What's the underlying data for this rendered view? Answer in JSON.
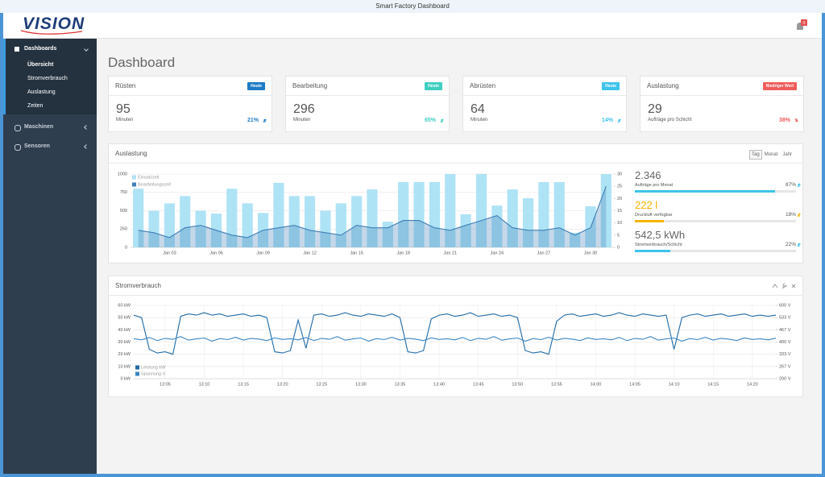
{
  "window": {
    "title": "Smart Factory Dashboard"
  },
  "header": {
    "logo": "VISION",
    "notifications": "0"
  },
  "sidebar": [
    {
      "label": "Dashboards",
      "children": [
        "Übersicht",
        "Stromverbrauch",
        "Auslastung",
        "Zeiten"
      ]
    },
    {
      "label": "Maschinen"
    },
    {
      "label": "Sensoren"
    }
  ],
  "page_title": "Dashboard",
  "kpis": [
    {
      "title": "Rüsten",
      "badge": "Heute",
      "value": "95",
      "unit": "Minuten",
      "change": "21%",
      "trend": "up",
      "color": "#1e7bc4"
    },
    {
      "title": "Bearbeitung",
      "badge": "Heute",
      "value": "296",
      "unit": "Minuten",
      "change": "65%",
      "trend": "up",
      "color": "#3fcfc0"
    },
    {
      "title": "Abrüsten",
      "badge": "Heute",
      "value": "64",
      "unit": "Minuten",
      "change": "14%",
      "trend": "up",
      "color": "#3ec3ea"
    },
    {
      "title": "Auslastung",
      "badge": "Niedriger Wert",
      "value": "29",
      "unit": "Aufträge pro Schicht",
      "change": "38%",
      "trend": "down",
      "color": "#f05b5b"
    }
  ],
  "range_buttons": {
    "options": [
      "Tag",
      "Monat",
      "Jahr"
    ],
    "active": 0
  },
  "stats": [
    {
      "value": "2.346",
      "label": "Aufträge pro Monat",
      "percent": 87,
      "percent_label": "87%",
      "trend": "up",
      "color": "#3ec3ea",
      "value_color": "#666666"
    },
    {
      "value": "222 l",
      "label": "Druckluft verfügbar",
      "percent": 18,
      "percent_label": "18%",
      "trend": "up",
      "color": "#f5b400",
      "value_color": "#f5b400"
    },
    {
      "value": "542,5 kWh",
      "label": "Stromverbrauch/Schicht",
      "percent": 22,
      "percent_label": "22%",
      "trend": "up",
      "color": "#3ec3ea",
      "value_color": "#666666"
    }
  ],
  "chart_data": [
    {
      "type": "combo",
      "title": "Auslastung",
      "categories": [
        null,
        null,
        "Jan 03",
        null,
        null,
        "Jan 06",
        null,
        null,
        "Jan 09",
        null,
        null,
        "Jan 12",
        null,
        null,
        "Jan 15",
        null,
        null,
        "Jan 18",
        null,
        null,
        "Jan 21",
        null,
        null,
        "Jan 24",
        null,
        null,
        "Jan 27",
        null,
        null,
        "Jan 30",
        null
      ],
      "series": [
        {
          "name": "Einsatzzeit",
          "type": "bar",
          "color": "#aee3f5",
          "values": [
            800,
            500,
            600,
            700,
            500,
            460,
            800,
            600,
            470,
            880,
            700,
            700,
            500,
            600,
            700,
            790,
            350,
            890,
            890,
            890,
            1000,
            450,
            1000,
            570,
            790,
            670,
            890,
            890,
            200,
            560,
            1000
          ]
        },
        {
          "name": "Bearbeitungszeit",
          "type": "area",
          "axis": "y2",
          "color": "#3f7fb5",
          "values": [
            7,
            6,
            4,
            8,
            9,
            7,
            5,
            4,
            7,
            8,
            9,
            7,
            6,
            5,
            9,
            8,
            8,
            11,
            11,
            8,
            7,
            9,
            11,
            13,
            8,
            7,
            7,
            8,
            5,
            8,
            25
          ]
        }
      ],
      "ylim": [
        0,
        1000
      ],
      "yticks": [
        0,
        250,
        500,
        750,
        1000
      ],
      "y2lim": [
        0,
        30
      ],
      "y2ticks": [
        0,
        5,
        10,
        15,
        20,
        25,
        30
      ],
      "grid": true
    },
    {
      "type": "line",
      "title": "Stromverbrauch",
      "x": [
        "13:01",
        "13:02",
        "13:03",
        "13:04",
        "13:05",
        "13:06",
        "13:07",
        "13:08",
        "13:09",
        "13:10",
        "13:11",
        "13:12",
        "13:13",
        "13:14",
        "13:15",
        "13:16",
        "13:17",
        "13:18",
        "13:19",
        "13:20",
        "13:21",
        "13:22",
        "13:23",
        "13:24",
        "13:25",
        "13:26",
        "13:27",
        "13:28",
        "13:29",
        "13:30",
        "13:31",
        "13:32",
        "13:33",
        "13:34",
        "13:35",
        "13:36",
        "13:37",
        "13:38",
        "13:39",
        "13:40",
        "13:41",
        "13:42",
        "13:43",
        "13:44",
        "13:45",
        "13:46",
        "13:47",
        "13:48",
        "13:49",
        "13:50",
        "13:51",
        "13:52",
        "13:53",
        "13:54",
        "13:55",
        "13:56",
        "13:57",
        "13:58",
        "13:59",
        "14:00",
        "14:01",
        "14:02",
        "14:03",
        "14:04",
        "14:05",
        "14:06",
        "14:07",
        "14:08",
        "14:09",
        "14:10",
        "14:11",
        "14:12",
        "14:13",
        "14:14",
        "14:15",
        "14:16",
        "14:17",
        "14:18",
        "14:19",
        "14:20",
        "14:21",
        "14:22",
        "14:23"
      ],
      "xlim": [
        "13:01",
        "14:23"
      ],
      "xticks": [
        "13:05",
        "13:10",
        "13:15",
        "13:20",
        "13:25",
        "13:30",
        "13:35",
        "13:40",
        "13:45",
        "13:50",
        "13:55",
        "14:00",
        "14:05",
        "14:10",
        "14:15",
        "14:20"
      ],
      "series": [
        {
          "name": "Leistung kW",
          "color": "#1f6aa8",
          "values": [
            52,
            50,
            24,
            21,
            22,
            20,
            51,
            53,
            52,
            54,
            52,
            53,
            51,
            52,
            53,
            51,
            52,
            50,
            22,
            21,
            23,
            48,
            25,
            52,
            53,
            51,
            52,
            54,
            52,
            51,
            53,
            52,
            51,
            53,
            50,
            22,
            21,
            23,
            49,
            52,
            53,
            51,
            52,
            54,
            51,
            52,
            53,
            51,
            52,
            50,
            23,
            21,
            22,
            20,
            47,
            52,
            53,
            51,
            52,
            53,
            51,
            52,
            54,
            52,
            51,
            53,
            52,
            51,
            52,
            24,
            50,
            52,
            53,
            51,
            52,
            53,
            51,
            52,
            53,
            51,
            52,
            51,
            52
          ]
        },
        {
          "name": "Spannung V",
          "color": "#3a86c4",
          "axis": "y2",
          "values": [
            418,
            412,
            425,
            408,
            420,
            415,
            430,
            410,
            417,
            422,
            405,
            419,
            413,
            426,
            411,
            420,
            416,
            408,
            423,
            414,
            418,
            412,
            425,
            408,
            420,
            415,
            430,
            410,
            417,
            422,
            405,
            419,
            413,
            426,
            411,
            420,
            416,
            408,
            423,
            414,
            418,
            412,
            425,
            408,
            420,
            415,
            430,
            410,
            417,
            422,
            405,
            419,
            413,
            426,
            411,
            420,
            416,
            408,
            423,
            414,
            418,
            412,
            425,
            408,
            420,
            415,
            430,
            410,
            417,
            422,
            405,
            419,
            413,
            426,
            411,
            420,
            416,
            408,
            423,
            414,
            418,
            412,
            421
          ]
        }
      ],
      "ylim": [
        0,
        60
      ],
      "yticks": [
        {
          "value": 0,
          "label": "0 kW"
        },
        {
          "value": 10,
          "label": "10 kW"
        },
        {
          "value": 20,
          "label": "20 kW"
        },
        {
          "value": 30,
          "label": "30 kW"
        },
        {
          "value": 40,
          "label": "40 kW"
        },
        {
          "value": 50,
          "label": "50 kW"
        },
        {
          "value": 60,
          "label": "60 kW"
        }
      ],
      "y2lim": [
        200,
        600
      ],
      "y2ticks": [
        {
          "value": 200,
          "label": "200 V"
        },
        {
          "value": 266.67,
          "label": "267 V"
        },
        {
          "value": 333.33,
          "label": "333 V"
        },
        {
          "value": 400,
          "label": "400 V"
        },
        {
          "value": 466.67,
          "label": "467 V"
        },
        {
          "value": 533.33,
          "label": "533 V"
        },
        {
          "value": 600,
          "label": "600 V"
        }
      ],
      "grid": true
    }
  ]
}
